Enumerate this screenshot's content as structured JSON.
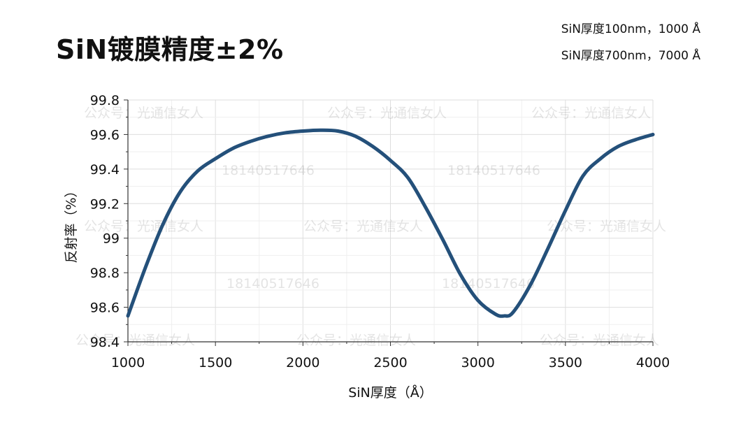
{
  "slide": {
    "title": "SiN镀膜精度±2%",
    "notes": [
      "SiN厚度100nm，1000 Å",
      "SiN厚度700nm，7000 Å"
    ]
  },
  "watermarks": {
    "account": "公众号：光通信女人",
    "phone": "18140517646"
  },
  "colors": {
    "line": "#24507a",
    "grid": "#e6e6e6",
    "axis": "#333333"
  },
  "chart_data": {
    "type": "line",
    "xlabel": "SiN厚度（Å）",
    "ylabel": "反射率（%）",
    "xlim": [
      1000,
      4000
    ],
    "ylim": [
      98.4,
      99.8
    ],
    "xticks": [
      1000,
      1500,
      2000,
      2500,
      3000,
      3500,
      4000
    ],
    "yticks": [
      98.4,
      98.6,
      98.8,
      99,
      99.2,
      99.4,
      99.6,
      99.8
    ],
    "x_tick_labels": [
      "1000",
      "1500",
      "2000",
      "2500",
      "3000",
      "3500",
      "4000"
    ],
    "y_tick_labels": [
      "98.4",
      "98.6",
      "98.8",
      "99",
      "99.2",
      "99.4",
      "99.6",
      "99.8"
    ],
    "grid": true,
    "series": [
      {
        "x": [
          1000,
          1100,
          1200,
          1300,
          1400,
          1500,
          1600,
          1700,
          1800,
          1900,
          2000,
          2100,
          2200,
          2300,
          2400,
          2500,
          2600,
          2700,
          2800,
          2900,
          3000,
          3100,
          3150,
          3200,
          3300,
          3400,
          3500,
          3600,
          3700,
          3800,
          3900,
          4000
        ],
        "y": [
          98.55,
          98.83,
          99.08,
          99.27,
          99.39,
          99.46,
          99.52,
          99.56,
          99.59,
          99.61,
          99.62,
          99.625,
          99.62,
          99.59,
          99.53,
          99.45,
          99.35,
          99.18,
          98.99,
          98.79,
          98.64,
          98.56,
          98.55,
          98.57,
          98.73,
          98.94,
          99.16,
          99.36,
          99.46,
          99.53,
          99.57,
          99.6
        ]
      }
    ]
  }
}
